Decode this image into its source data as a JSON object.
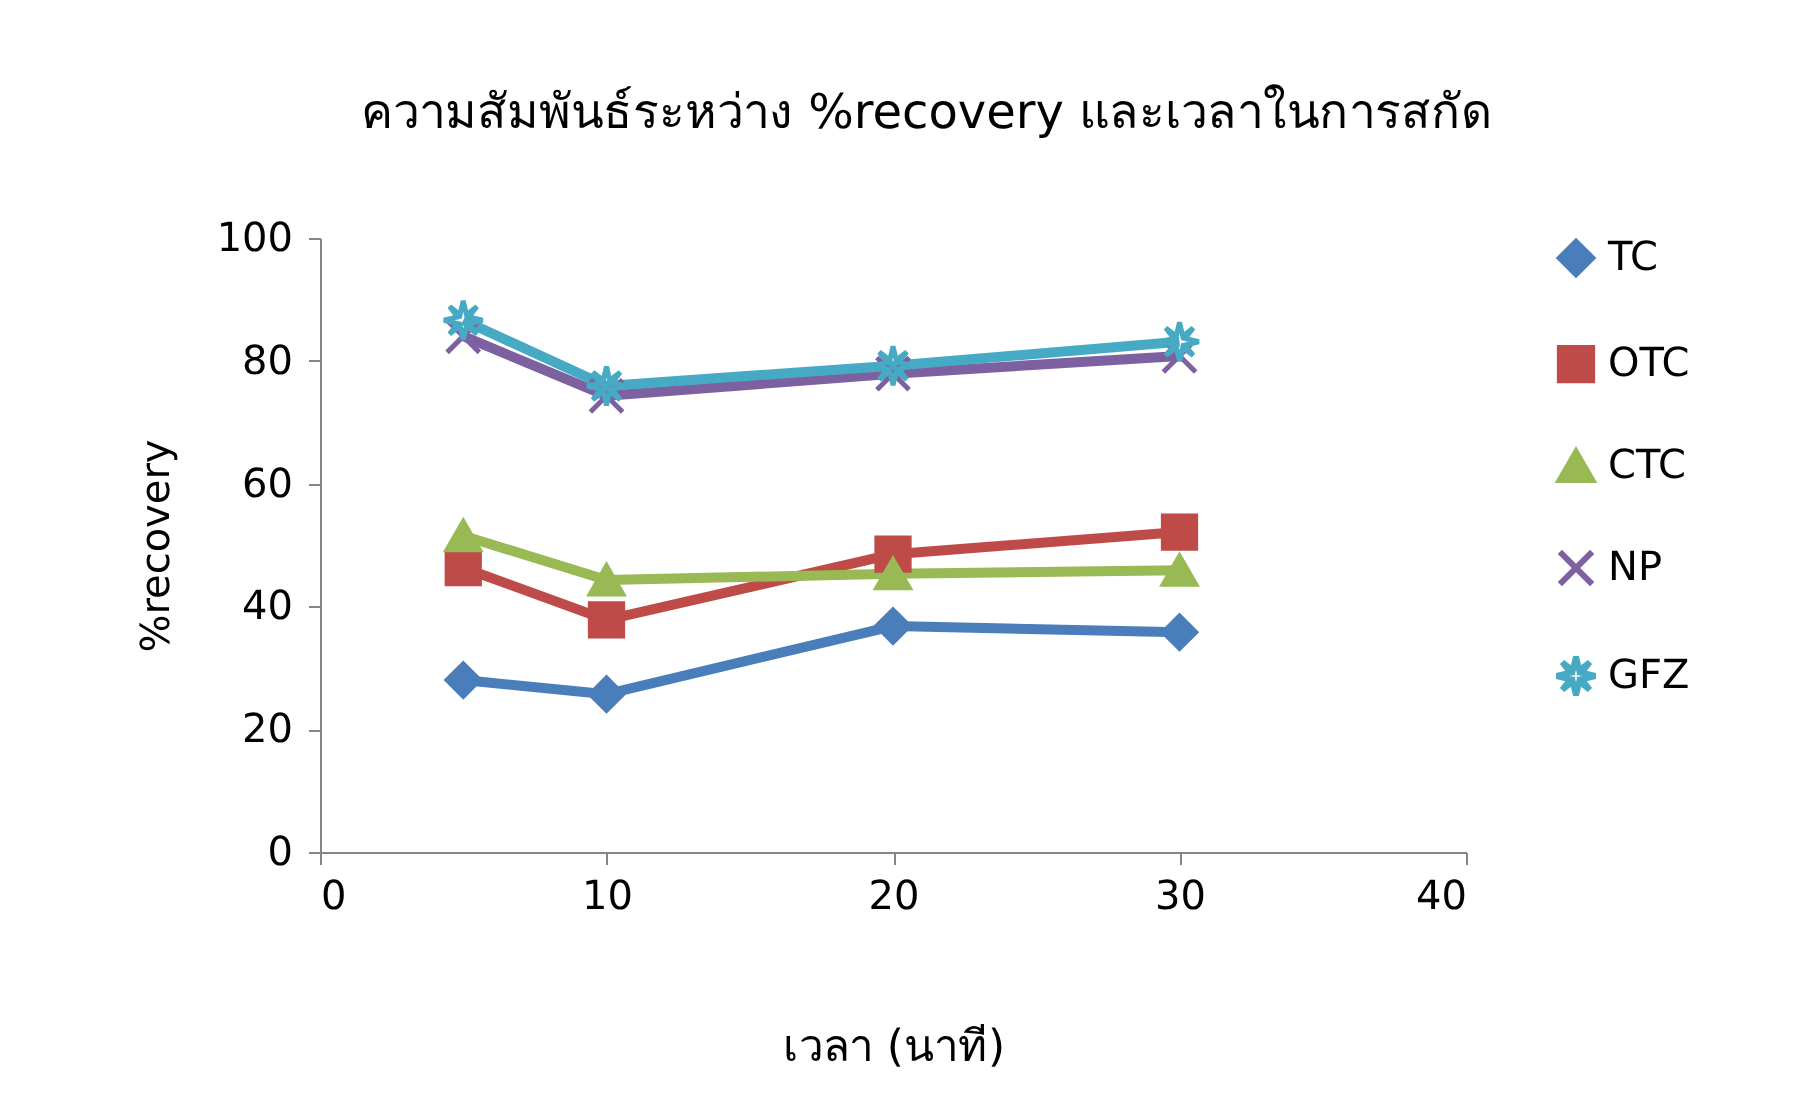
{
  "chart_data": {
    "type": "line",
    "title": "ความสัมพันธ์ระหว่าง %recovery และเวลาในการสกัด",
    "xlabel": "เวลา (นาที)",
    "ylabel": "%recovery",
    "x": [
      5,
      10,
      20,
      30
    ],
    "xlim": [
      0,
      40
    ],
    "xticks": [
      0,
      10,
      20,
      30,
      40
    ],
    "ylim": [
      0,
      100
    ],
    "yticks": [
      0,
      20,
      40,
      60,
      80,
      100
    ],
    "grid": false,
    "legend": "right",
    "series": [
      {
        "name": "TC",
        "color": "#4a7ebb",
        "marker": "diamond",
        "values": [
          28.0,
          25.7,
          36.8,
          35.8
        ]
      },
      {
        "name": "OTC",
        "color": "#be4b48",
        "marker": "square",
        "values": [
          46.3,
          37.8,
          48.5,
          52.1
        ]
      },
      {
        "name": "CTC",
        "color": "#98b954",
        "marker": "triangle",
        "values": [
          51.5,
          44.3,
          45.3,
          45.9
        ]
      },
      {
        "name": "NP",
        "color": "#7d60a0",
        "marker": "cross",
        "values": [
          84.0,
          74.3,
          77.9,
          80.8
        ]
      },
      {
        "name": "GFZ",
        "color": "#46aac5",
        "marker": "star",
        "values": [
          86.6,
          75.9,
          79.2,
          83.1
        ]
      }
    ]
  }
}
